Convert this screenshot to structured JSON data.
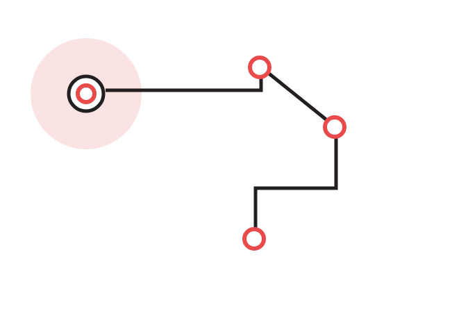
{
  "diagram": {
    "type": "path-network",
    "colors": {
      "background": "#ffffff",
      "path": "#231f20",
      "node_ring": "#ea4a4a",
      "node_fill": "#ffffff",
      "focus_halo": "#fbe3e3",
      "selected_ring": "#231f20"
    },
    "nodes": [
      {
        "id": "start",
        "shape": "ring",
        "state": "selected"
      },
      {
        "id": "top-right",
        "shape": "ring",
        "state": "default"
      },
      {
        "id": "right",
        "shape": "ring",
        "state": "default"
      },
      {
        "id": "bottom",
        "shape": "ring",
        "state": "default"
      }
    ],
    "edges": [
      {
        "from": "start",
        "to": "top-right",
        "style": "orthogonal"
      },
      {
        "from": "top-right",
        "to": "right",
        "style": "diagonal"
      },
      {
        "from": "right",
        "to": "bottom",
        "style": "orthogonal"
      }
    ]
  }
}
